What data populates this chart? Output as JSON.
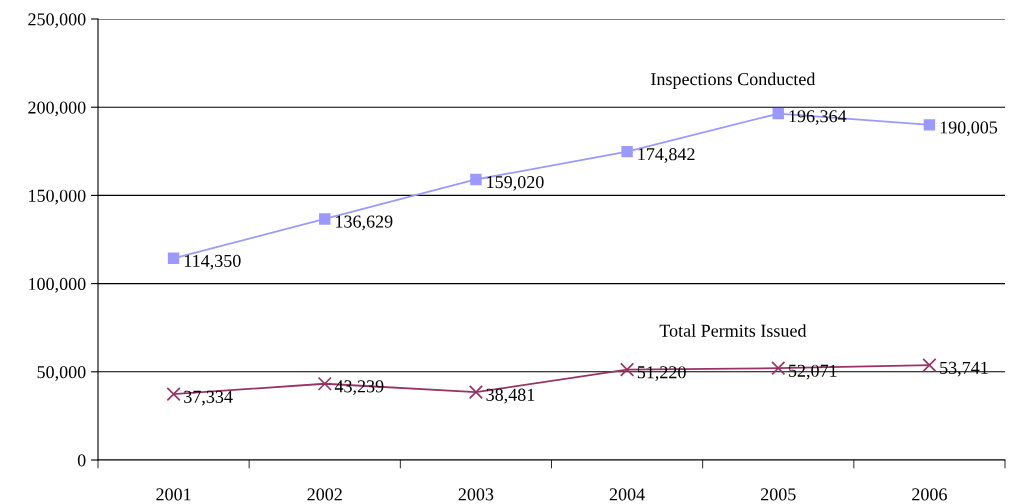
{
  "chart_data": {
    "type": "line",
    "categories": [
      "2001",
      "2002",
      "2003",
      "2004",
      "2005",
      "2006"
    ],
    "series": [
      {
        "name": "Inspections Conducted",
        "color": "#9999ff",
        "marker": "square",
        "values": [
          114350,
          136629,
          159020,
          174842,
          196364,
          190005
        ],
        "value_labels": [
          "114,350",
          "136,629",
          "159,020",
          "174,842",
          "196,364",
          "190,005"
        ]
      },
      {
        "name": "Total Permits Issued",
        "color": "#993366",
        "marker": "cross",
        "values": [
          37334,
          43239,
          38481,
          51220,
          52071,
          53741
        ],
        "value_labels": [
          "37,334",
          "43,239",
          "38,481",
          "51,220",
          "52,071",
          "53,741"
        ]
      }
    ],
    "ylim": [
      0,
      250000
    ],
    "yticks": [
      0,
      {
        "value": 50000,
        "label": "50,000"
      },
      {
        "value": 100000,
        "label": "100,000"
      },
      {
        "value": 150000,
        "label": "150,000"
      },
      {
        "value": 200000,
        "label": "200,000"
      },
      {
        "value": 250000,
        "label": "250,000"
      }
    ],
    "grid": "y",
    "line_style": "solid"
  }
}
